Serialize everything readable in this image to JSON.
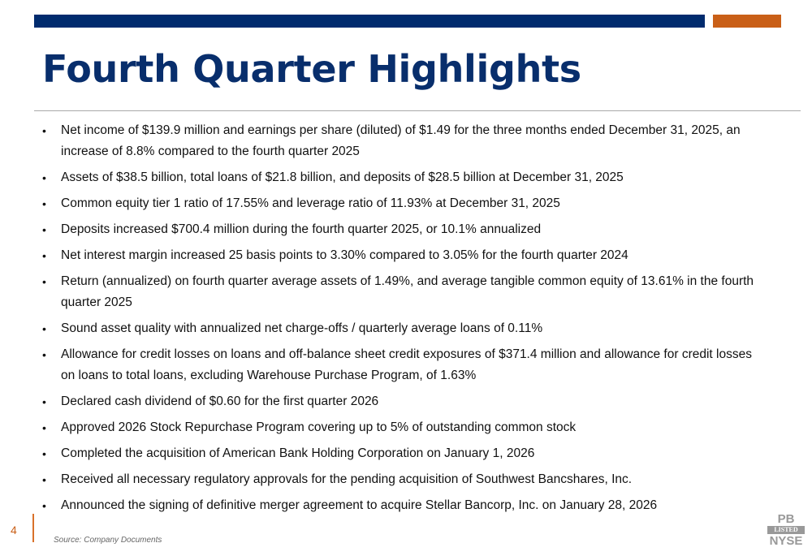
{
  "colors": {
    "primary": "#002b6e",
    "accent": "#c95f17"
  },
  "title": "Fourth Quarter Highlights",
  "bullets": [
    "Net income of $139.9 million and earnings per share (diluted) of $1.49 for the three months ended December 31, 2025, an increase of 8.8% compared to the fourth quarter 2025",
    "Assets of $38.5 billion, total loans of $21.8 billion, and deposits of $28.5 billion at December 31, 2025",
    "Common equity tier 1 ratio of 17.55% and leverage ratio of 11.93% at December 31, 2025",
    "Deposits increased $700.4 million during the fourth quarter 2025, or 10.1% annualized",
    "Net interest margin increased 25 basis points to 3.30% compared to 3.05% for the fourth quarter 2024",
    "Return (annualized) on fourth quarter average assets of 1.49%, and average tangible common equity of 13.61% in the fourth quarter 2025",
    "Sound asset quality with annualized net charge-offs / quarterly average loans of 0.11%",
    "Allowance for credit losses on loans and off-balance sheet credit exposures of $371.4 million and allowance for credit losses on loans to total loans, excluding Warehouse Purchase Program, of 1.63%",
    "Declared cash dividend of $0.60 for the first quarter 2026",
    "Approved 2026 Stock Repurchase Program covering up to 5% of outstanding common stock",
    "Completed the acquisition of American Bank Holding Corporation on January 1, 2026",
    "Received all necessary regulatory approvals for the pending acquisition of Southwest Bancshares, Inc.",
    "Announced the signing of definitive merger agreement to acquire Stellar Bancorp, Inc. on January 28, 2026"
  ],
  "footer": {
    "page_number": "4",
    "source": "Source: Company Documents"
  },
  "logo": {
    "line1": "PB",
    "line2": "LISTED",
    "line3": "NYSE"
  }
}
